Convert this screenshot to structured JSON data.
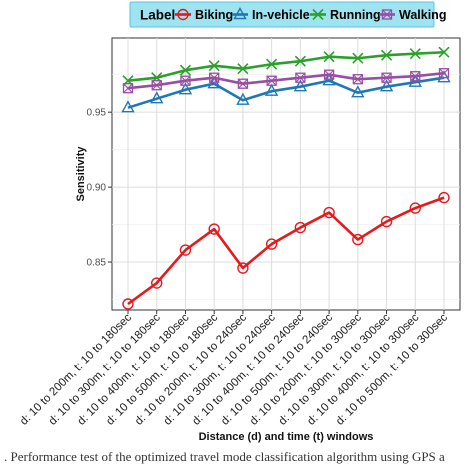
{
  "chart_data": {
    "type": "line",
    "xlabel": "Distance (d) and time (t) windows",
    "ylabel": "Sensitivity",
    "ylim": [
      0.818,
      0.9995
    ],
    "yticks": [
      0.85,
      0.9,
      0.95
    ],
    "ytick_labels": [
      "0.85",
      "0.90",
      "0.95"
    ],
    "grid": true,
    "legend": {
      "title": "Label",
      "placement": "top"
    },
    "categories": [
      "d: 10 to 200m, t: 10 to 180sec",
      "d: 10 to 300m, t: 10 to 180sec",
      "d: 10 to 400m, t: 10 to 180sec",
      "d: 10 to 500m, t: 10 to 180sec",
      "d: 10 to 200m, t: 10 to 240sec",
      "d: 10 to 300m, t: 10 to 240sec",
      "d: 10 to 400m, t: 10 to 240sec",
      "d: 10 to 500m, t: 10 to 240sec",
      "d: 10 to 200m, t: 10 to 300sec",
      "d: 10 to 300m, t: 10 to 300sec",
      "d: 10 to 400m, t: 10 to 300sec",
      "d: 10 to 500m, t: 10 to 300sec"
    ],
    "series": [
      {
        "name": "Biking",
        "color": "#e41a1c",
        "marker": "circle",
        "values": [
          0.822,
          0.836,
          0.858,
          0.872,
          0.846,
          0.862,
          0.873,
          0.883,
          0.865,
          0.877,
          0.886,
          0.893
        ]
      },
      {
        "name": "In-vehicle",
        "color": "#1f78b4",
        "marker": "triangle",
        "values": [
          0.953,
          0.959,
          0.965,
          0.969,
          0.958,
          0.964,
          0.967,
          0.971,
          0.963,
          0.967,
          0.97,
          0.973
        ]
      },
      {
        "name": "Running",
        "color": "#2ca02c",
        "marker": "x",
        "values": [
          0.971,
          0.973,
          0.978,
          0.981,
          0.979,
          0.982,
          0.984,
          0.987,
          0.986,
          0.988,
          0.989,
          0.99
        ]
      },
      {
        "name": "Walking",
        "color": "#984ea3",
        "marker": "boxcross",
        "values": [
          0.966,
          0.968,
          0.971,
          0.973,
          0.969,
          0.971,
          0.973,
          0.975,
          0.972,
          0.973,
          0.974,
          0.976
        ]
      }
    ]
  },
  "caption": ". Performance test of the optimized travel mode classification algorithm using GPS a"
}
